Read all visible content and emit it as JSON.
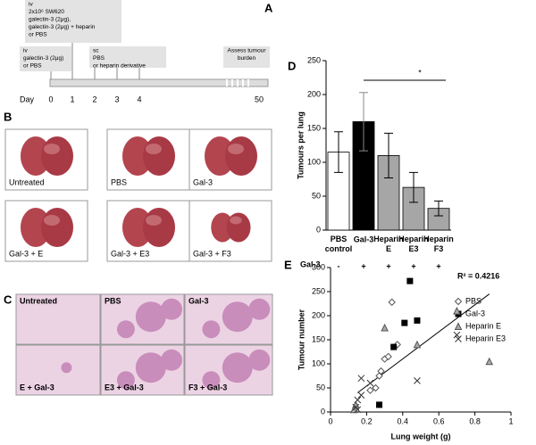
{
  "panel_a": {
    "label": "A",
    "boxes": [
      {
        "lines": [
          "iv",
          "2x10⁶ SW620",
          "galectin-3 (2μg),",
          "galectin-3 (2μg) + heparin",
          "or PBS"
        ]
      },
      {
        "lines": [
          "iv",
          "galectin-3 (2μg)",
          "or PBS"
        ]
      },
      {
        "lines": [
          "sc",
          "PBS",
          "or heparin derivative"
        ]
      },
      {
        "lines": [
          "Assess tumour",
          "burden"
        ]
      }
    ],
    "day_label": "Day",
    "days": [
      "0",
      "1",
      "2",
      "3",
      "4",
      "50"
    ]
  },
  "panel_b": {
    "label": "B",
    "photos": [
      "Untreated",
      "PBS",
      "Gal-3",
      "Gal-3 + E",
      "Gal-3 + E3",
      "Gal-3 + F3"
    ]
  },
  "panel_c": {
    "label": "C",
    "sections": [
      "Untreated",
      "PBS",
      "Gal-3",
      "E + Gal-3",
      "E3 + Gal-3",
      "F3 + Gal-3"
    ]
  },
  "chart_data": [
    {
      "type": "bar",
      "panel_label": "D",
      "y_label": "Tumours per lung",
      "categories": [
        "PBS control",
        "Gal-3",
        "Heparin E",
        "Heparin E3",
        "Heparin F3"
      ],
      "values": [
        115,
        160,
        110,
        63,
        32
      ],
      "errors": [
        30,
        43,
        33,
        22,
        11
      ],
      "colors": [
        "#ffffff",
        "#000000",
        "#a6a6a6",
        "#a6a6a6",
        "#a6a6a6"
      ],
      "row_label": "Gal-3",
      "row_values": [
        "-",
        "+",
        "+",
        "+",
        "+"
      ],
      "significance": "*",
      "ylim": [
        0,
        250
      ],
      "yticks": [
        0,
        50,
        100,
        150,
        200,
        250
      ]
    },
    {
      "type": "scatter",
      "panel_label": "E",
      "x_label": "Lung weight (g)",
      "y_label": "Tumour number",
      "annotation": "R² = 0.4216",
      "series": [
        {
          "name": "PBS",
          "marker": "diamond",
          "color": "#555555",
          "x": [
            0.34,
            0.37,
            0.3,
            0.32,
            0.28,
            0.27,
            0.25,
            0.22
          ],
          "y": [
            228,
            140,
            110,
            115,
            85,
            75,
            50,
            45
          ]
        },
        {
          "name": "Gal-3",
          "marker": "square",
          "color": "#000000",
          "x": [
            0.44,
            0.41,
            0.48,
            0.35,
            0.27
          ],
          "y": [
            272,
            185,
            190,
            135,
            15
          ]
        },
        {
          "name": "Heparin E",
          "marker": "triangle",
          "color": "#aaaaaa",
          "x": [
            0.7,
            0.88,
            0.48,
            0.3,
            0.14,
            0.13
          ],
          "y": [
            210,
            105,
            140,
            175,
            15,
            5
          ]
        },
        {
          "name": "Heparin E3",
          "marker": "cross",
          "color": "#333333",
          "x": [
            0.7,
            0.48,
            0.22,
            0.17,
            0.17,
            0.15,
            0.14,
            0.15
          ],
          "y": [
            160,
            65,
            60,
            70,
            35,
            25,
            10,
            5
          ]
        }
      ],
      "trendline": {
        "x": [
          0.15,
          0.88
        ],
        "y": [
          40,
          245
        ]
      },
      "xlim": [
        0,
        1
      ],
      "xticks": [
        0,
        0.2,
        0.4,
        0.6,
        0.8,
        1
      ],
      "ylim": [
        0,
        300
      ],
      "yticks": [
        0,
        50,
        100,
        150,
        200,
        250,
        300
      ]
    }
  ]
}
